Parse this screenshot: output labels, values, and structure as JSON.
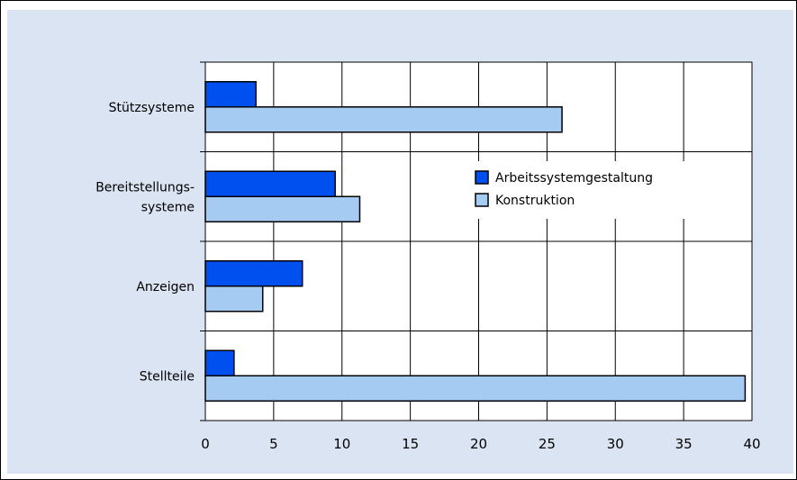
{
  "chart_data": {
    "type": "bar",
    "orientation": "horizontal",
    "categories": [
      "Stützsysteme",
      "Bereitstellungs-\nsysteme",
      "Anzeigen",
      "Stellteile"
    ],
    "series": [
      {
        "name": "Arbeitssystemgestaltung",
        "values": [
          3.7,
          9.5,
          7.1,
          2.1
        ],
        "color": "#0050f0"
      },
      {
        "name": "Konstruktion",
        "values": [
          26.1,
          11.3,
          4.2,
          39.5
        ],
        "color": "#a6cbf3"
      }
    ],
    "xlim": [
      0,
      40
    ],
    "xticks": [
      "0",
      "5",
      "10",
      "15",
      "20",
      "25",
      "30",
      "35",
      "40"
    ],
    "grid": true,
    "legend": "top-right, inside plot area",
    "colors": {
      "plot_background": "#dbe4f2",
      "plot_area": "#ffffff",
      "gridline": "#000000"
    }
  }
}
